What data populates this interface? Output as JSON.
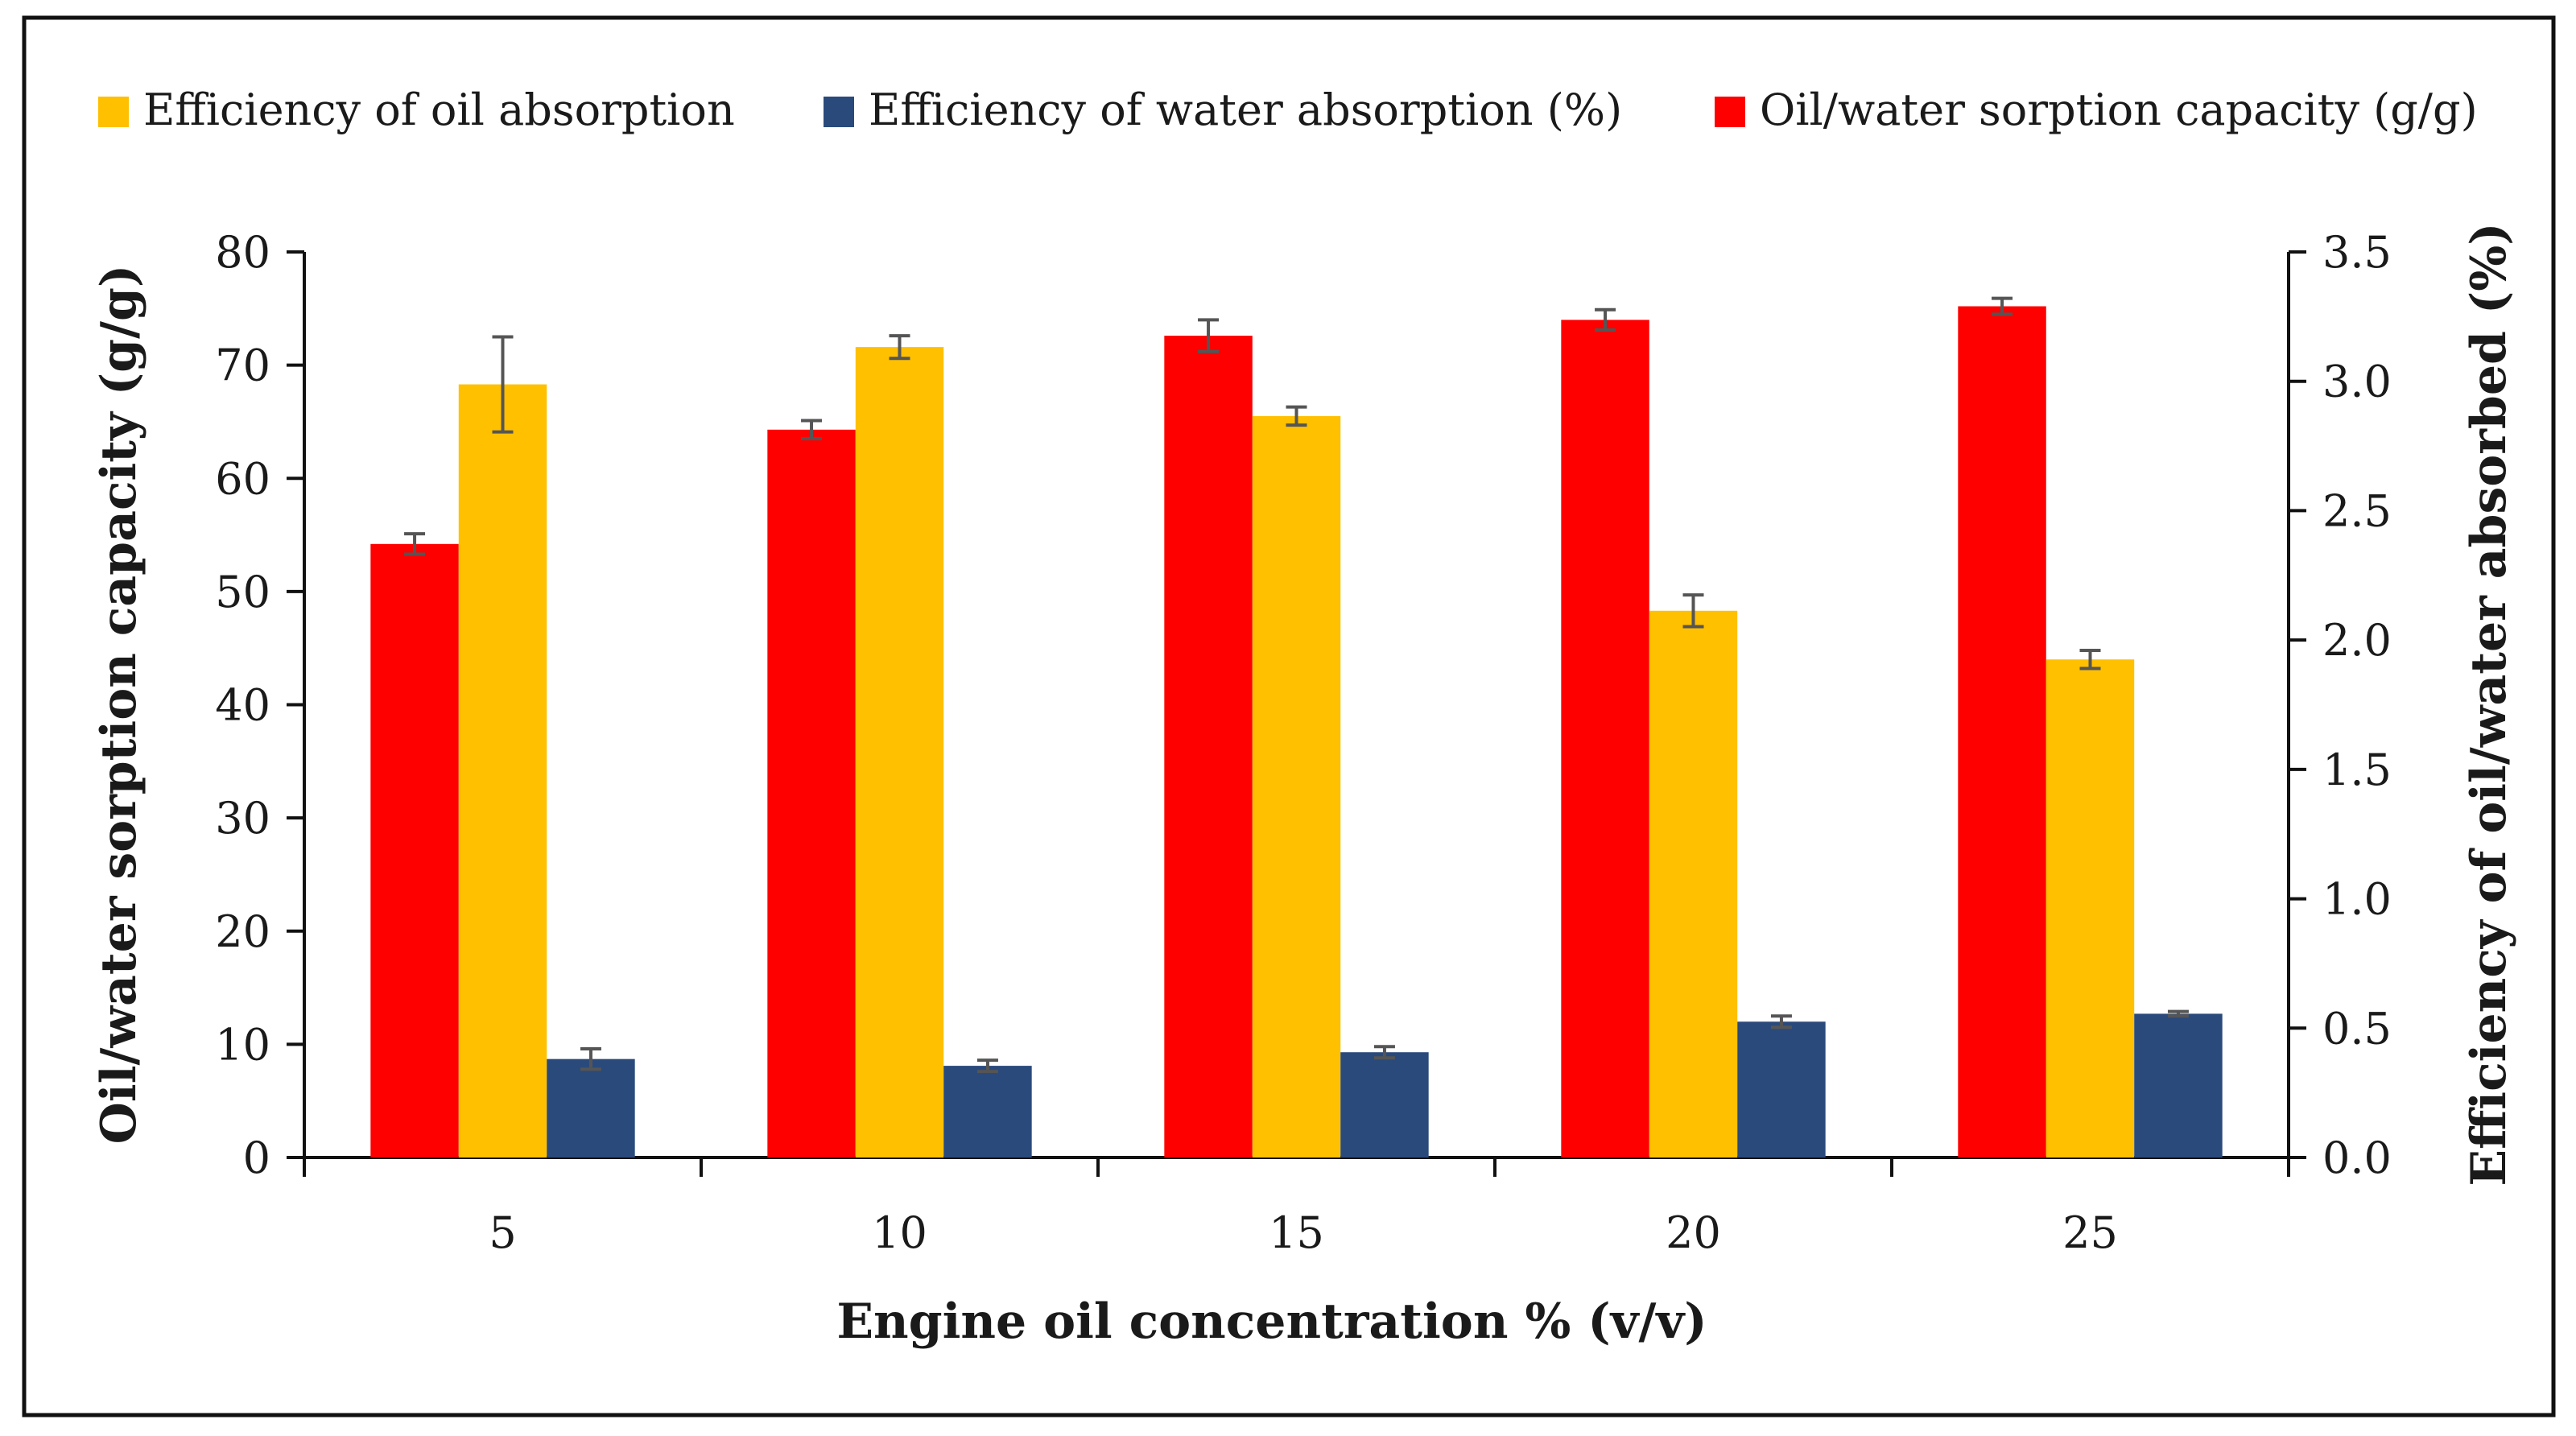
{
  "chart_data": {
    "type": "bar",
    "title": "",
    "xlabel": "Engine oil concentration % (v/v)",
    "ylabel": "Oil/water sorption capacity (g/g)",
    "y2label": "Efficiency of oil/water absorbed (%)",
    "categories": [
      "5",
      "10",
      "15",
      "20",
      "25"
    ],
    "ylim": [
      0,
      80
    ],
    "y2lim": [
      0,
      3.5
    ],
    "yticks": [
      "0",
      "10",
      "20",
      "30",
      "40",
      "50",
      "60",
      "70",
      "80"
    ],
    "y2ticks": [
      "0.0",
      "0.5",
      "1.0",
      "1.5",
      "2.0",
      "2.5",
      "3.0",
      "3.5"
    ],
    "legend_position": "top",
    "series": [
      {
        "name": "Oil/water sorption capacity (g/g)",
        "color": "#ff0000",
        "axis": "left",
        "values": [
          54.2,
          64.3,
          72.6,
          74.0,
          75.2
        ],
        "errors": [
          0.9,
          0.8,
          1.4,
          0.9,
          0.7
        ]
      },
      {
        "name": "Efficiency of oil absorption",
        "color": "#ffc000",
        "axis": "left",
        "values": [
          68.3,
          71.6,
          65.5,
          48.3,
          44.0
        ],
        "errors": [
          4.2,
          1.0,
          0.8,
          1.4,
          0.8
        ]
      },
      {
        "name": "Efficiency of water absorption (%)",
        "color": "#2a4a7c",
        "axis": "left",
        "values": [
          8.7,
          8.1,
          9.3,
          12.0,
          12.7
        ],
        "errors": [
          0.9,
          0.5,
          0.5,
          0.5,
          0.2
        ]
      }
    ],
    "legend": [
      {
        "label": "Efficiency of oil absorption",
        "color": "#ffc000"
      },
      {
        "label": "Efficiency of water absorption (%)",
        "color": "#2a4a7c"
      },
      {
        "label": "Oil/water sorption capacity (g/g)",
        "color": "#ff0000"
      }
    ]
  }
}
